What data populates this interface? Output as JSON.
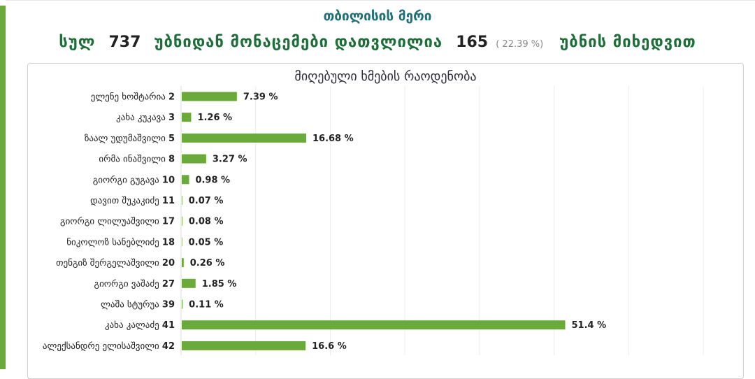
{
  "header": {
    "title": "თბილისის მერი",
    "summary_prefix": "სულ",
    "total_precincts": "737",
    "summary_middle": "უბნიდან მონაცემები დათვლილია",
    "counted_precincts": "165",
    "counted_percent": "( 22.39 %)",
    "summary_suffix": "უბნის მიხედვით"
  },
  "colors": {
    "bar": "#6aaa3a",
    "accent": "#6aaa3a",
    "title": "#1f6f78",
    "summary": "#1e6e3a"
  },
  "chart_data": {
    "type": "bar",
    "orientation": "horizontal",
    "title": "მიღებული ხმების რაოდენობა",
    "unit": "%",
    "xlim": [
      0,
      70
    ],
    "grid": true,
    "categories": [
      {
        "name": "ელენე ხოშტარია",
        "number": "2"
      },
      {
        "name": "კახა კუკავა",
        "number": "3"
      },
      {
        "name": "ზაალ უდუმაშვილი",
        "number": "5"
      },
      {
        "name": "ირმა ინაშვილი",
        "number": "8"
      },
      {
        "name": "გიორგი გუგავა",
        "number": "10"
      },
      {
        "name": "დავით შუკაკიძე",
        "number": "11"
      },
      {
        "name": "გიორგი ლილუაშვილი",
        "number": "17"
      },
      {
        "name": "ნიკოლოზ სანებლიძე",
        "number": "18"
      },
      {
        "name": "თენგიზ შერგელაშვილი",
        "number": "20"
      },
      {
        "name": "გიორგი ვაშაძე",
        "number": "27"
      },
      {
        "name": "ლაშა სტურუა",
        "number": "39"
      },
      {
        "name": "კახა კალაძე",
        "number": "41"
      },
      {
        "name": "ალექსანდრე ელისაშვილი",
        "number": "42"
      }
    ],
    "values": [
      7.39,
      1.26,
      16.68,
      3.27,
      0.98,
      0.07,
      0.08,
      0.05,
      0.26,
      1.85,
      0.11,
      51.4,
      16.6
    ],
    "value_labels": [
      "7.39 %",
      "1.26 %",
      "16.68 %",
      "3.27 %",
      "0.98 %",
      "0.07 %",
      "0.08 %",
      "0.05 %",
      "0.26 %",
      "1.85 %",
      "0.11 %",
      "51.4 %",
      "16.6 %"
    ]
  }
}
